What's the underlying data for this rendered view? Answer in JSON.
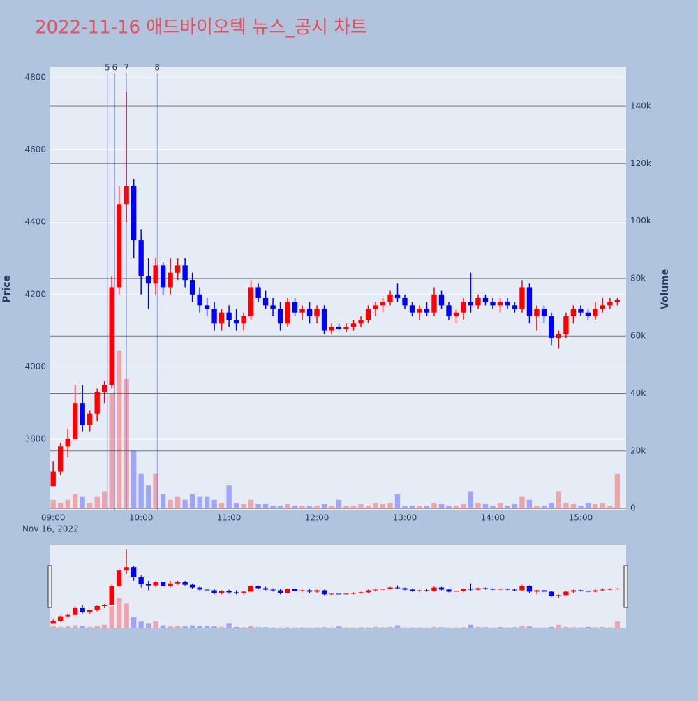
{
  "chart_data": {
    "type": "candlestick",
    "title": "2022-11-16 애드바이오텍 뉴스_공시 차트",
    "ylabel": "Price",
    "y2label": "Volume",
    "x_sublabel": "Nov 16, 2022",
    "increasing_color": "#ff0000",
    "decreasing_color": "#0000ff",
    "x": [
      "09:00",
      "09:05",
      "09:10",
      "09:15",
      "09:20",
      "09:25",
      "09:30",
      "09:35",
      "09:40",
      "09:45",
      "09:50",
      "09:55",
      "10:00",
      "10:05",
      "10:10",
      "10:15",
      "10:20",
      "10:25",
      "10:30",
      "10:35",
      "10:40",
      "10:45",
      "10:50",
      "10:55",
      "11:00",
      "11:05",
      "11:10",
      "11:15",
      "11:20",
      "11:25",
      "11:30",
      "11:35",
      "11:40",
      "11:45",
      "11:50",
      "11:55",
      "12:00",
      "12:05",
      "12:10",
      "12:15",
      "12:20",
      "12:25",
      "12:30",
      "12:35",
      "12:40",
      "12:45",
      "12:50",
      "12:55",
      "13:00",
      "13:05",
      "13:10",
      "13:15",
      "13:20",
      "13:25",
      "13:30",
      "13:35",
      "13:40",
      "13:45",
      "13:50",
      "13:55",
      "14:00",
      "14:05",
      "14:10",
      "14:15",
      "14:20",
      "14:25",
      "14:30",
      "14:35",
      "14:40",
      "14:45",
      "14:50",
      "14:55",
      "15:00",
      "15:05",
      "15:10",
      "15:15",
      "15:20",
      "15:25"
    ],
    "open": [
      3670,
      3710,
      3780,
      3800,
      3900,
      3840,
      3870,
      3930,
      3950,
      4220,
      4450,
      4500,
      4350,
      4250,
      4230,
      4280,
      4220,
      4260,
      4280,
      4240,
      4200,
      4170,
      4160,
      4120,
      4150,
      4130,
      4120,
      4140,
      4220,
      4190,
      4170,
      4160,
      4120,
      4180,
      4150,
      4160,
      4140,
      4160,
      4100,
      4110,
      4105,
      4110,
      4120,
      4130,
      4160,
      4170,
      4180,
      4200,
      4190,
      4170,
      4150,
      4160,
      4150,
      4200,
      4170,
      4140,
      4150,
      4180,
      4170,
      4190,
      4180,
      4170,
      4180,
      4170,
      4160,
      4220,
      4140,
      4160,
      4140,
      4080,
      4090,
      4140,
      4160,
      4150,
      4140,
      4160,
      4170,
      4180
    ],
    "high": [
      3740,
      3790,
      3830,
      3950,
      3950,
      3880,
      3940,
      3960,
      4250,
      4500,
      4760,
      4520,
      4380,
      4300,
      4300,
      4290,
      4300,
      4300,
      4300,
      4260,
      4220,
      4190,
      4180,
      4160,
      4170,
      4160,
      4150,
      4240,
      4230,
      4210,
      4190,
      4180,
      4190,
      4190,
      4170,
      4180,
      4170,
      4170,
      4120,
      4120,
      4120,
      4130,
      4140,
      4170,
      4180,
      4190,
      4210,
      4230,
      4200,
      4180,
      4170,
      4180,
      4220,
      4210,
      4180,
      4160,
      4190,
      4260,
      4200,
      4200,
      4190,
      4190,
      4190,
      4180,
      4240,
      4230,
      4170,
      4170,
      4150,
      4100,
      4150,
      4170,
      4170,
      4160,
      4180,
      4190,
      4190,
      4190
    ],
    "low": [
      3670,
      3700,
      3750,
      3800,
      3820,
      3820,
      3850,
      3900,
      3940,
      4200,
      4400,
      4300,
      4200,
      4160,
      4200,
      4200,
      4200,
      4240,
      4220,
      4180,
      4150,
      4140,
      4100,
      4100,
      4110,
      4100,
      4100,
      4130,
      4180,
      4160,
      4140,
      4100,
      4110,
      4140,
      4130,
      4120,
      4120,
      4090,
      4090,
      4100,
      4095,
      4100,
      4110,
      4120,
      4140,
      4150,
      4170,
      4180,
      4160,
      4140,
      4130,
      4140,
      4140,
      4160,
      4130,
      4120,
      4130,
      4150,
      4160,
      4170,
      4160,
      4150,
      4160,
      4150,
      4150,
      4120,
      4100,
      4120,
      4060,
      4050,
      4080,
      4120,
      4140,
      4130,
      4130,
      4150,
      4160,
      4170
    ],
    "close": [
      3710,
      3780,
      3800,
      3900,
      3840,
      3870,
      3930,
      3950,
      4220,
      4450,
      4500,
      4350,
      4250,
      4230,
      4280,
      4220,
      4260,
      4280,
      4240,
      4200,
      4170,
      4160,
      4120,
      4150,
      4130,
      4120,
      4140,
      4220,
      4190,
      4170,
      4160,
      4120,
      4180,
      4150,
      4160,
      4140,
      4160,
      4100,
      4110,
      4105,
      4110,
      4120,
      4130,
      4160,
      4170,
      4180,
      4200,
      4190,
      4170,
      4150,
      4160,
      4150,
      4200,
      4170,
      4140,
      4150,
      4180,
      4170,
      4190,
      4180,
      4170,
      4180,
      4170,
      4160,
      4220,
      4140,
      4160,
      4140,
      4080,
      4090,
      4140,
      4160,
      4150,
      4140,
      4160,
      4170,
      4180,
      4185
    ],
    "volume": [
      3000,
      2000,
      3000,
      5000,
      4000,
      2000,
      4000,
      6000,
      40000,
      55000,
      45000,
      20000,
      12000,
      8000,
      12000,
      5000,
      3000,
      4000,
      3000,
      5000,
      4000,
      4000,
      3000,
      2000,
      8000,
      2000,
      1500,
      3000,
      1500,
      1500,
      1000,
      1000,
      1500,
      1000,
      1000,
      1000,
      1000,
      1500,
      1000,
      3000,
      1000,
      1000,
      1500,
      1000,
      2000,
      1500,
      2000,
      5000,
      1000,
      1000,
      1000,
      1000,
      2000,
      1500,
      1000,
      1000,
      1500,
      6000,
      2000,
      1500,
      1000,
      2000,
      1000,
      1500,
      4000,
      3000,
      1000,
      1000,
      2000,
      6000,
      2000,
      1500,
      1000,
      2000,
      1500,
      2000,
      1000,
      12000
    ],
    "xlim": [
      "08:58",
      "15:31"
    ],
    "xticks": [
      "09:00",
      "10:00",
      "11:00",
      "12:00",
      "13:00",
      "14:00",
      "15:00"
    ],
    "ylim": [
      3603,
      4829
    ],
    "yticks": [
      3800,
      4000,
      4200,
      4400,
      4600,
      4800
    ],
    "y2lim": [
      -700,
      153600
    ],
    "y2ticks": [
      0,
      {
        "value": 20000,
        "label": "20k"
      },
      {
        "value": 40000,
        "label": "40k"
      },
      {
        "value": 60000,
        "label": "60k"
      },
      {
        "value": 80000,
        "label": "80k"
      },
      {
        "value": 100000,
        "label": "100k"
      },
      {
        "value": 120000,
        "label": "120k"
      },
      {
        "value": 140000,
        "label": "140k"
      }
    ],
    "annotations": [
      {
        "x": "09:37",
        "label": "5"
      },
      {
        "x": "09:42",
        "label": "6"
      },
      {
        "x": "09:50",
        "label": "7"
      },
      {
        "x": "10:11",
        "label": "8"
      }
    ]
  }
}
